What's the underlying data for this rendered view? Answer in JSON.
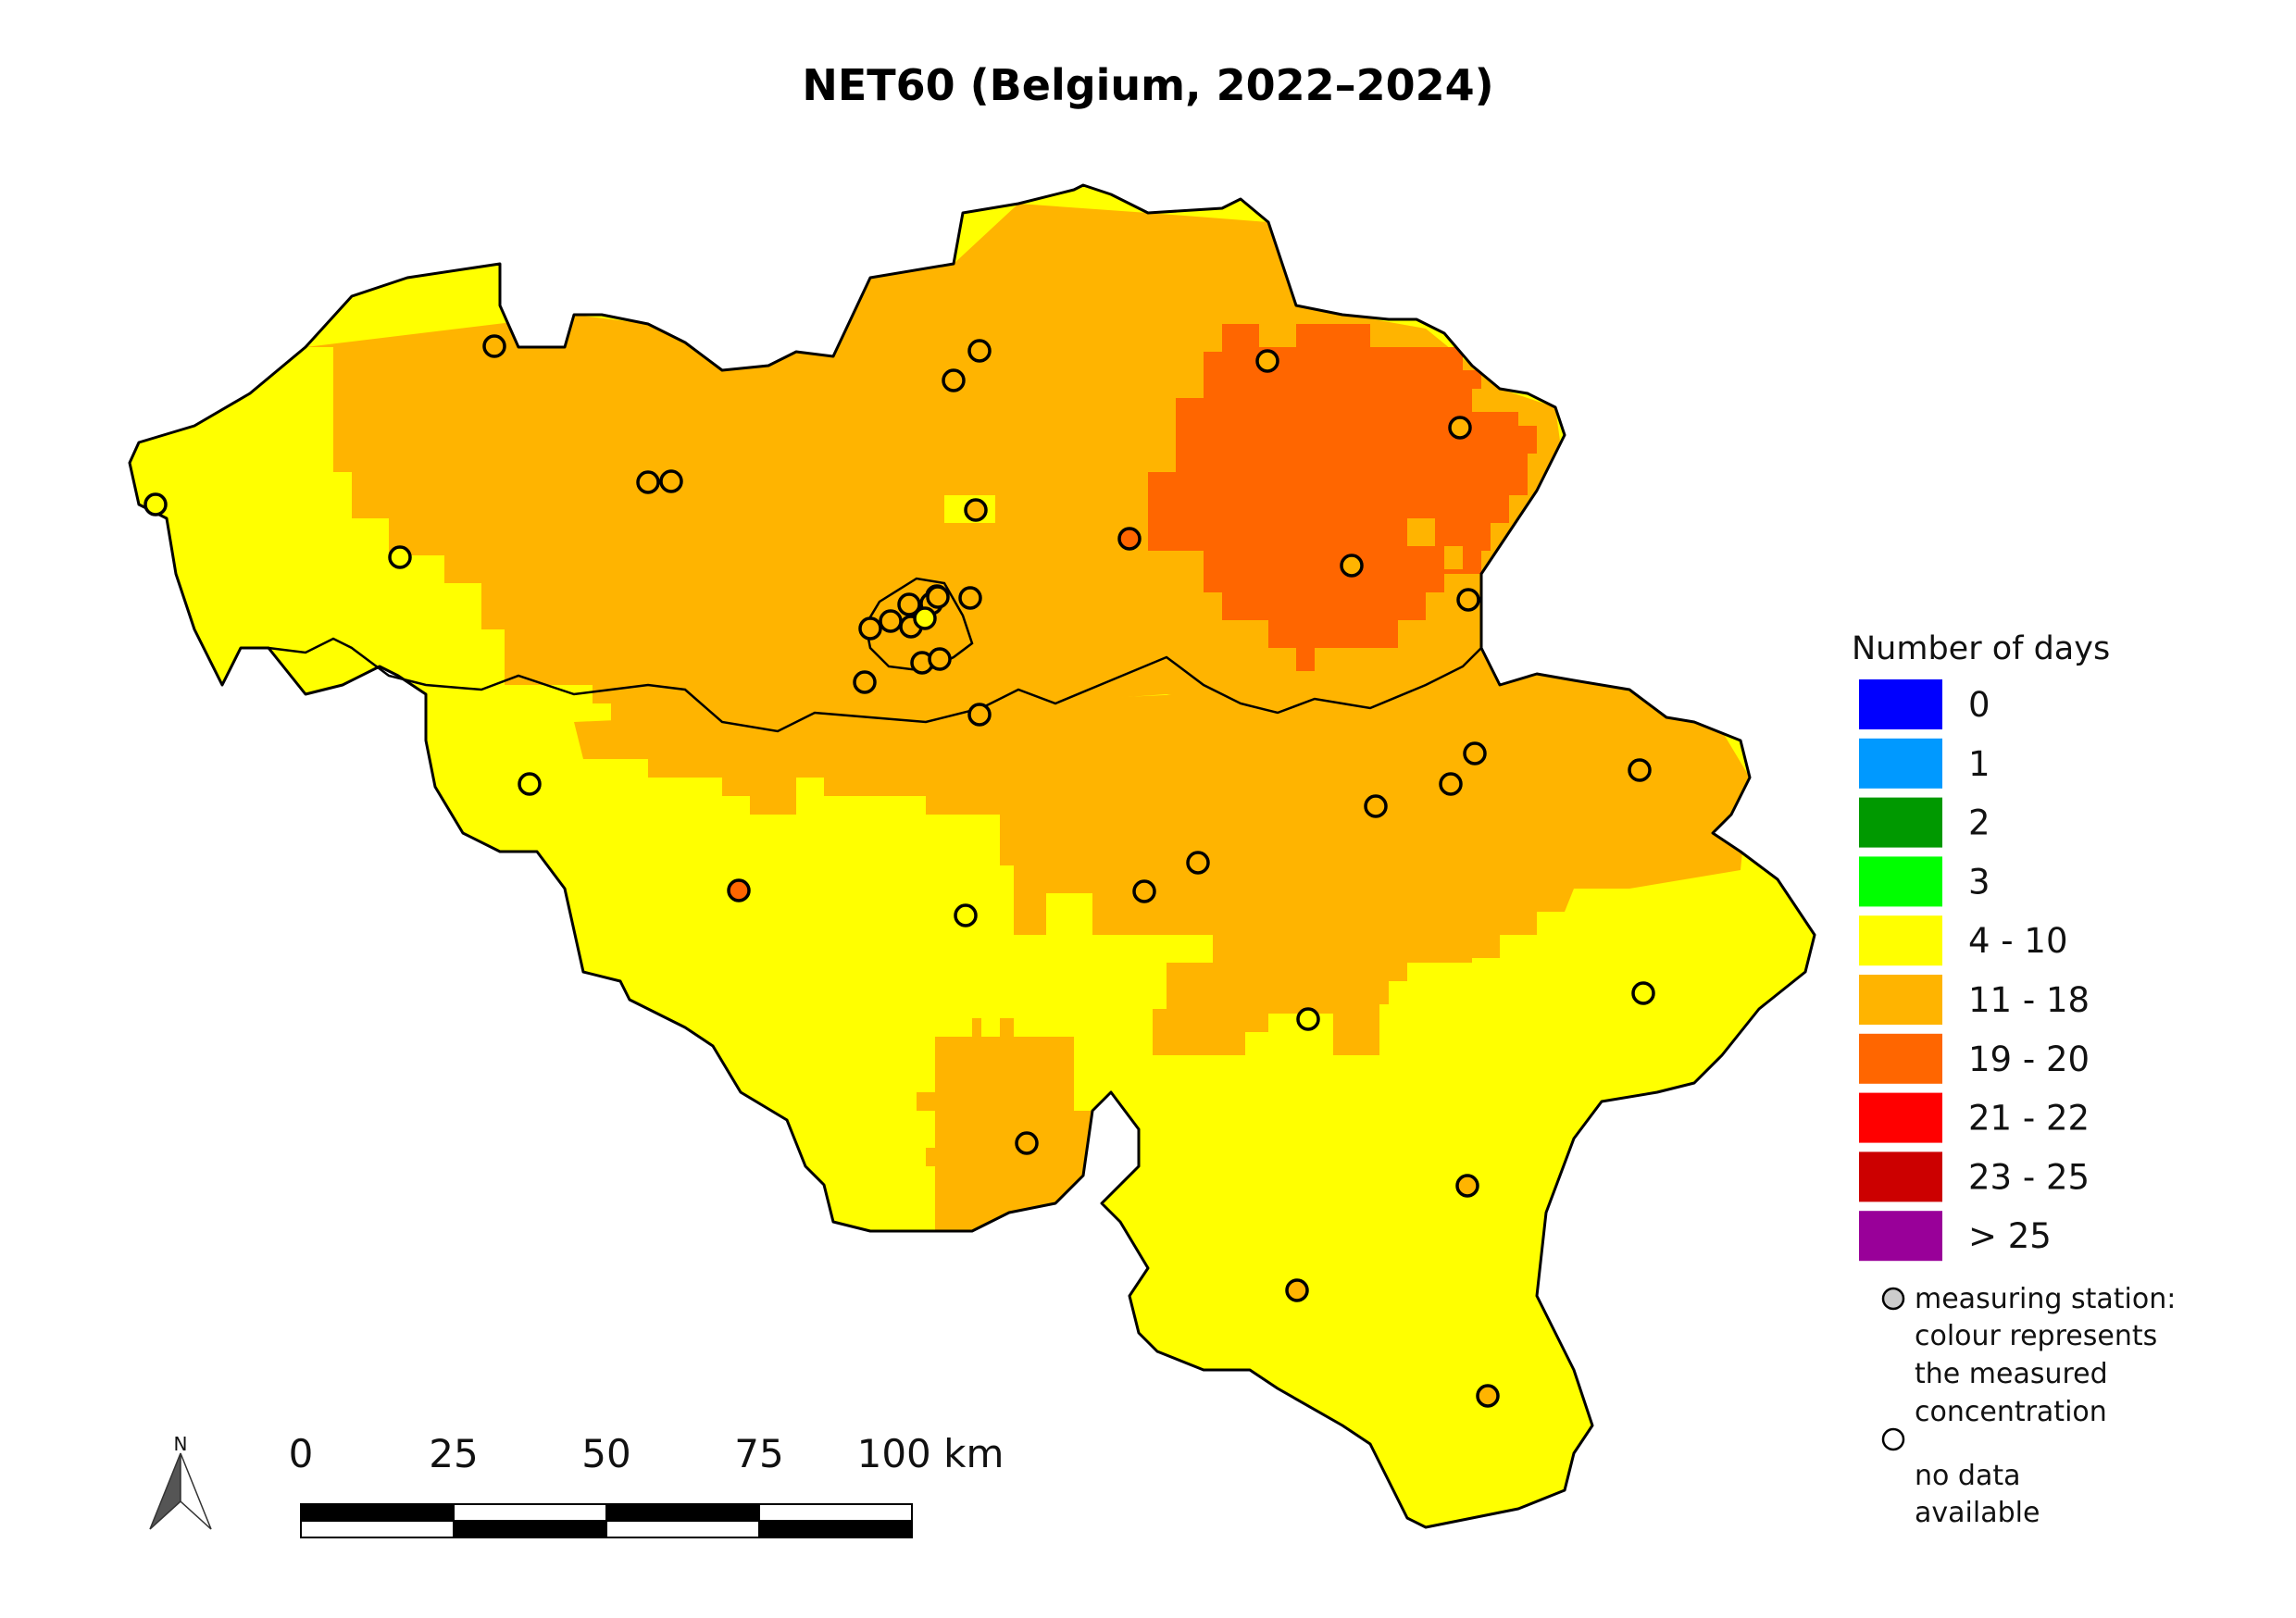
{
  "title": "NET60 (Belgium, 2022–2024)",
  "legend": {
    "title": "Number of days",
    "classes": [
      {
        "label": "0",
        "color": "#0000ff"
      },
      {
        "label": "1",
        "color": "#0099ff"
      },
      {
        "label": "2",
        "color": "#009900"
      },
      {
        "label": "3",
        "color": "#00ff00"
      },
      {
        "label": "4 - 10",
        "color": "#ffff00"
      },
      {
        "label": "11 - 18",
        "color": "#ffb400"
      },
      {
        "label": "19 - 20",
        "color": "#ff6600"
      },
      {
        "label": "21 - 22",
        "color": "#ff0000"
      },
      {
        "label": "23 - 25",
        "color": "#cc0000"
      },
      {
        "label": "> 25",
        "color": "#990099"
      }
    ],
    "station_line1": "measuring station:",
    "station_line2": "colour represents",
    "station_line3": "the measured",
    "station_line4": "concentration",
    "nodata_line1": "no data",
    "nodata_line2": "available"
  },
  "scale_bar": {
    "labels": [
      "0",
      "25",
      "50",
      "75",
      "100 km"
    ]
  },
  "north_arrow": {
    "label": "N"
  },
  "stations": [
    {
      "class": "11 - 18"
    },
    {
      "class": "11 - 18"
    },
    {
      "class": "11 - 18"
    },
    {
      "class": "11 - 18"
    },
    {
      "class": "11 - 18"
    },
    {
      "class": "11 - 18"
    },
    {
      "class": "4 - 10"
    },
    {
      "class": "11 - 18"
    },
    {
      "class": "4 - 10"
    },
    {
      "class": "19 - 20"
    },
    {
      "class": "11 - 18"
    },
    {
      "class": "11 - 18"
    },
    {
      "class": "11 - 18"
    },
    {
      "class": "11 - 18"
    },
    {
      "class": "11 - 18"
    },
    {
      "class": "11 - 18"
    },
    {
      "class": "11 - 18"
    },
    {
      "class": "11 - 18"
    },
    {
      "class": "11 - 18"
    },
    {
      "class": "11 - 18"
    },
    {
      "class": "11 - 18"
    },
    {
      "class": "4 - 10"
    },
    {
      "class": "11 - 18"
    },
    {
      "class": "11 - 18"
    },
    {
      "class": "11 - 18"
    },
    {
      "class": "11 - 18"
    },
    {
      "class": "19 - 20"
    },
    {
      "class": "4 - 10"
    },
    {
      "class": "11 - 18"
    },
    {
      "class": "4 - 10"
    },
    {
      "class": "11 - 18"
    },
    {
      "class": "11 - 18"
    },
    {
      "class": "4 - 10"
    },
    {
      "class": "11 - 18"
    },
    {
      "class": "11 - 18"
    },
    {
      "class": "11 - 18"
    },
    {
      "class": "4 - 10"
    },
    {
      "class": "11 - 18"
    },
    {
      "class": "11 - 18"
    },
    {
      "class": "11 - 18"
    },
    {
      "class": "11 - 18"
    }
  ]
}
